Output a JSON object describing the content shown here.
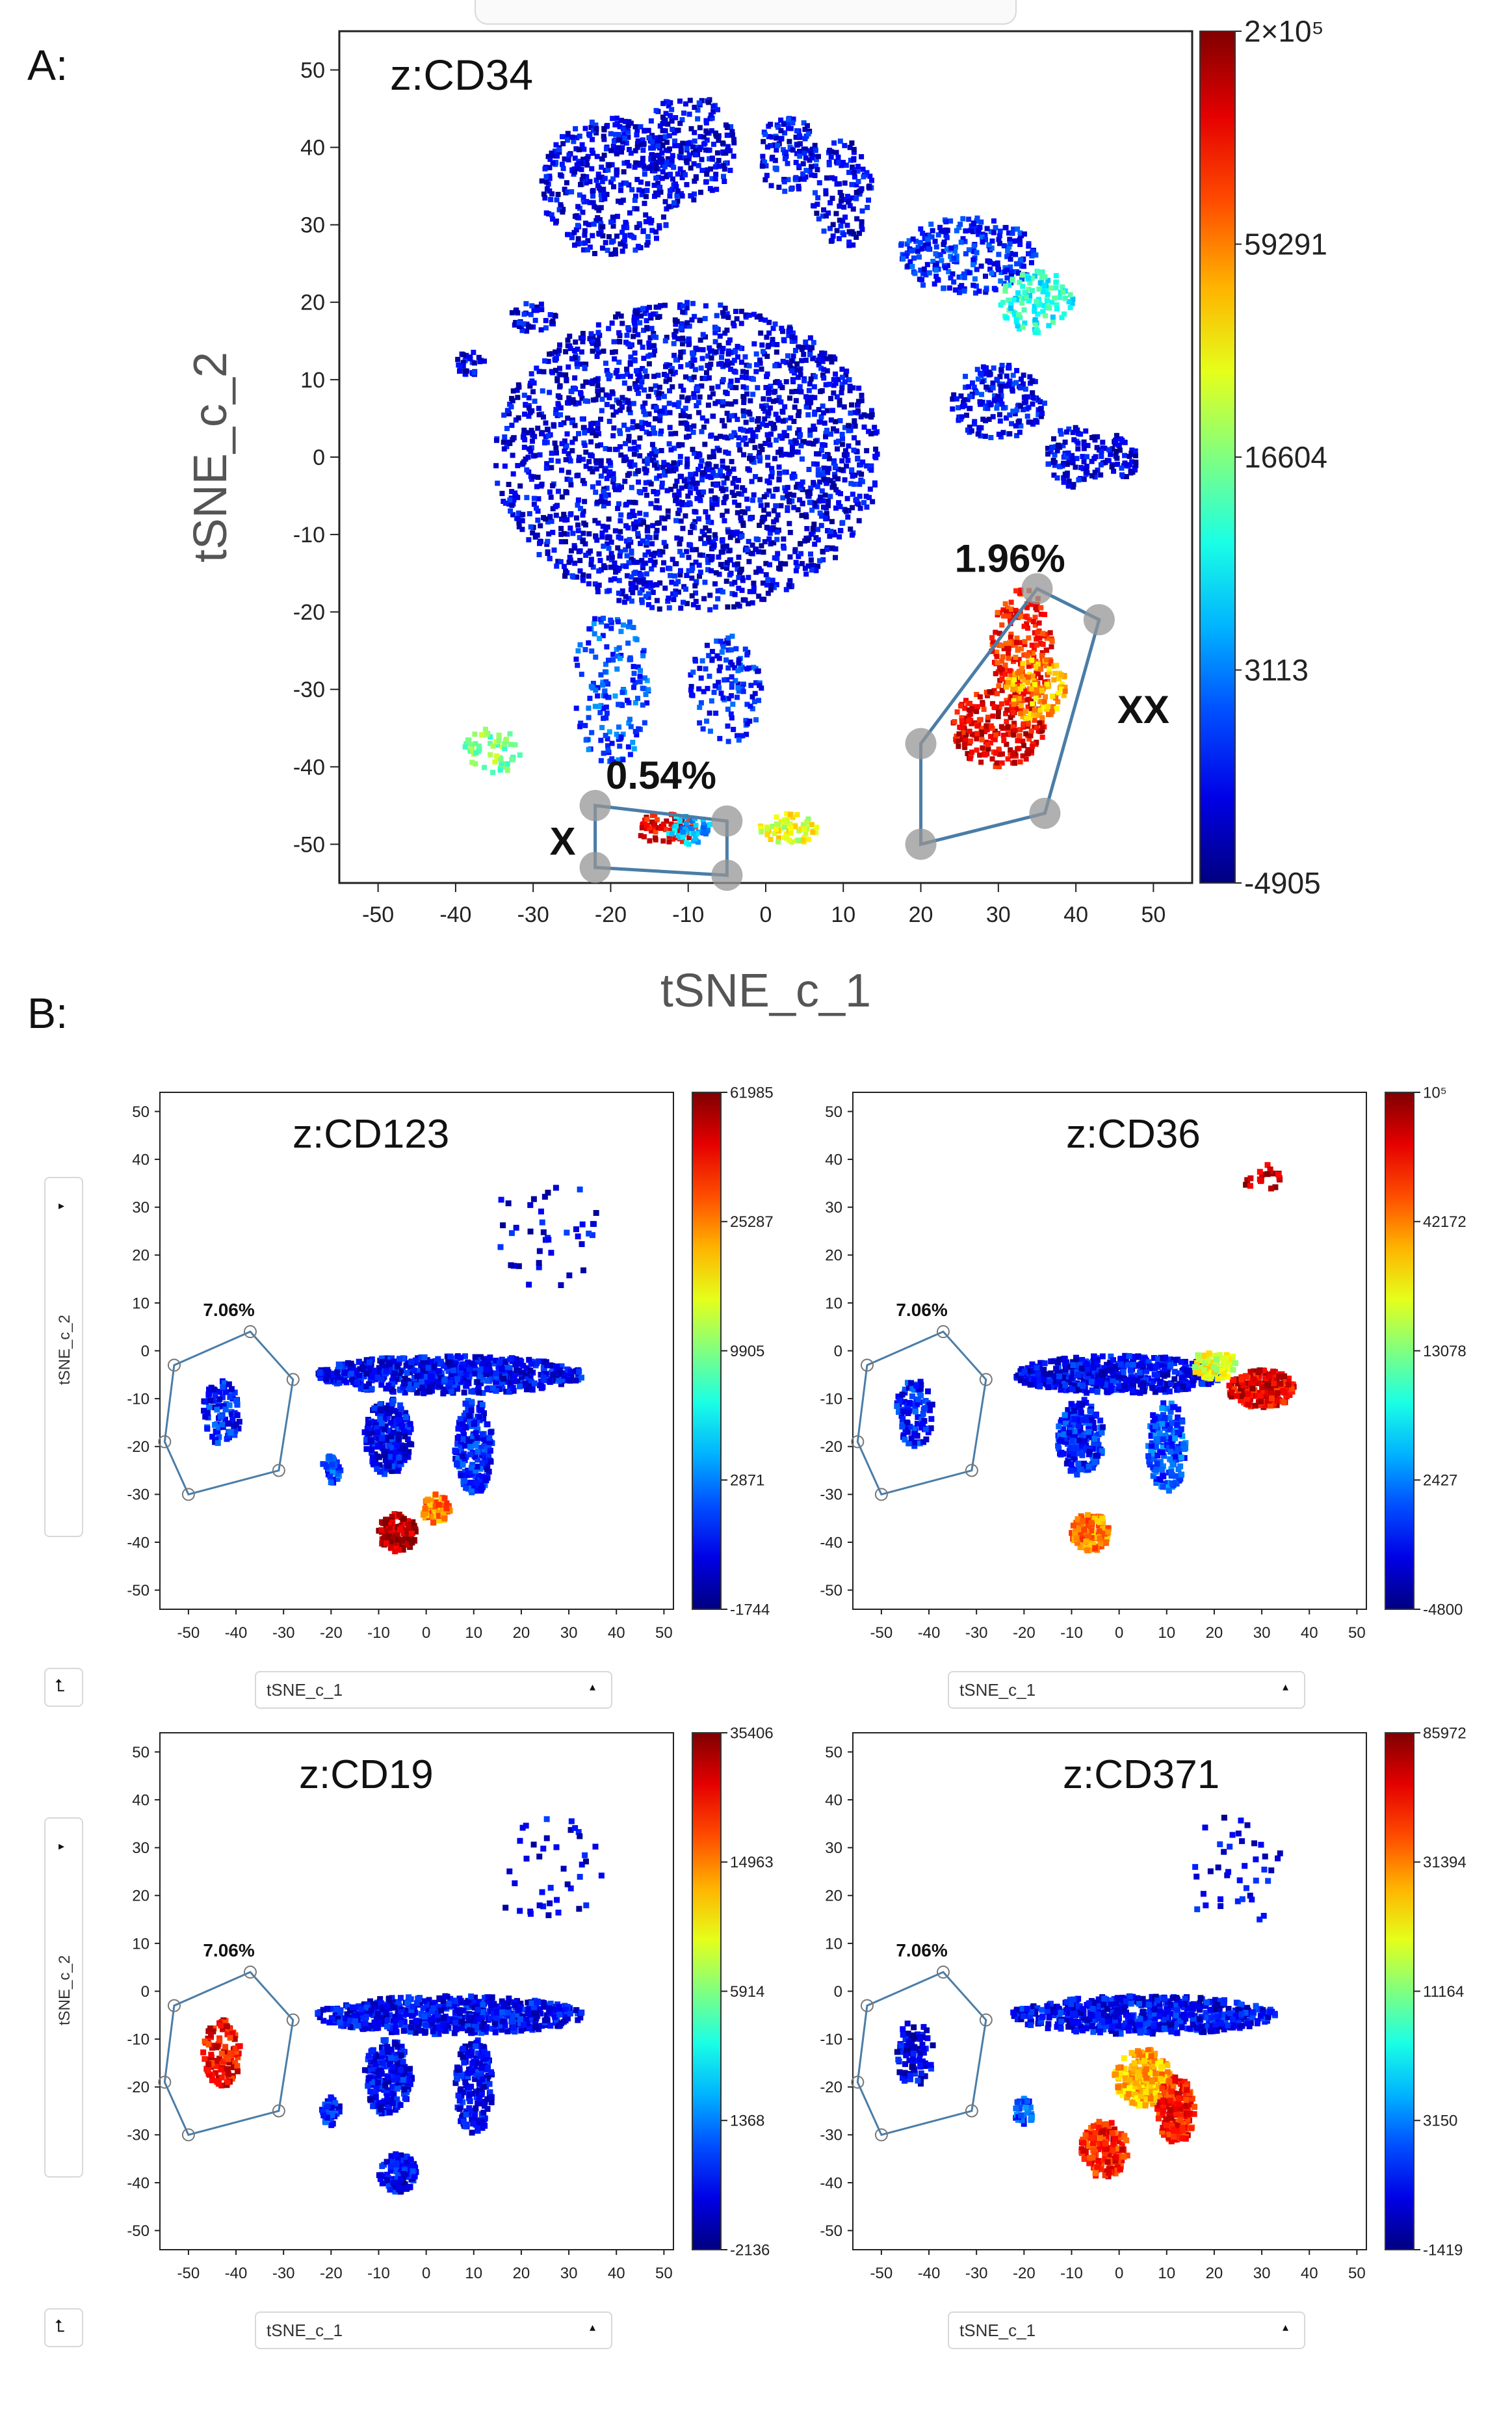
{
  "panels": {
    "a_label": "A:",
    "b_label": "B:"
  },
  "chart_data": [
    {
      "type": "scatter",
      "id": "A",
      "title": "z:CD34",
      "xlabel": "tSNE_c_1",
      "ylabel": "tSNE_c_2",
      "xlim": [
        -55,
        55
      ],
      "ylim": [
        -55,
        55
      ],
      "xticks": [
        "-50",
        "-40",
        "-30",
        "-20",
        "-10",
        "0",
        "10",
        "20",
        "30",
        "40",
        "50"
      ],
      "yticks": [
        "50",
        "40",
        "30",
        "20",
        "10",
        "0",
        "-10",
        "-20",
        "-30",
        "-40",
        "-50"
      ],
      "colorbar_labels": [
        "2×10⁵",
        "59291",
        "16604",
        "3113",
        "-4905"
      ],
      "gates": [
        {
          "label": "X",
          "percent": "0.54%",
          "vertices": [
            [
              -22,
              -45
            ],
            [
              -5,
              -47
            ],
            [
              -5,
              -54
            ],
            [
              -22,
              -53
            ]
          ]
        },
        {
          "label": "XX",
          "percent": "1.96%",
          "vertices": [
            [
              20,
              -37
            ],
            [
              35,
              -17
            ],
            [
              43,
              -21
            ],
            [
              36,
              -46
            ],
            [
              20,
              -50
            ]
          ]
        }
      ],
      "clusters": [
        {
          "cx": -10,
          "cy": 0,
          "rx": 25,
          "ry": 20,
          "n": 2200,
          "value": 0.1
        },
        {
          "cx": -20,
          "cy": 35,
          "rx": 9,
          "ry": 9,
          "n": 400,
          "value": 0.1
        },
        {
          "cx": -10,
          "cy": 40,
          "rx": 6,
          "ry": 7,
          "n": 220,
          "value": 0.1
        },
        {
          "cx": 3,
          "cy": 39,
          "rx": 4,
          "ry": 5,
          "n": 120,
          "value": 0.12
        },
        {
          "cx": 10,
          "cy": 34,
          "rx": 4,
          "ry": 7,
          "n": 120,
          "value": 0.1
        },
        {
          "cx": 26,
          "cy": 26,
          "rx": 9,
          "ry": 5,
          "n": 260,
          "value": 0.15
        },
        {
          "cx": 35,
          "cy": 20,
          "rx": 5,
          "ry": 4,
          "n": 120,
          "value": 0.4
        },
        {
          "cx": 30,
          "cy": 7,
          "rx": 6,
          "ry": 5,
          "n": 180,
          "value": 0.12
        },
        {
          "cx": 40,
          "cy": 0,
          "rx": 4,
          "ry": 4,
          "n": 100,
          "value": 0.1
        },
        {
          "cx": 46,
          "cy": 0,
          "rx": 2,
          "ry": 3,
          "n": 50,
          "value": 0.1
        },
        {
          "cx": 33,
          "cy": -25,
          "rx": 4,
          "ry": 8,
          "n": 220,
          "value": 0.85
        },
        {
          "cx": 30,
          "cy": -35,
          "rx": 6,
          "ry": 5,
          "n": 240,
          "value": 0.9
        },
        {
          "cx": 35,
          "cy": -30,
          "rx": 4,
          "ry": 4,
          "n": 110,
          "value": 0.7
        },
        {
          "cx": -13,
          "cy": -48,
          "rx": 4,
          "ry": 2,
          "n": 70,
          "value": 0.88
        },
        {
          "cx": -10,
          "cy": -48,
          "rx": 3,
          "ry": 2,
          "n": 50,
          "value": 0.3
        },
        {
          "cx": 3,
          "cy": -48,
          "rx": 4,
          "ry": 2,
          "n": 70,
          "value": 0.6
        },
        {
          "cx": -20,
          "cy": -30,
          "rx": 5,
          "ry": 10,
          "n": 160,
          "value": 0.2
        },
        {
          "cx": -5,
          "cy": -30,
          "rx": 5,
          "ry": 7,
          "n": 120,
          "value": 0.15
        },
        {
          "cx": -35,
          "cy": -38,
          "rx": 4,
          "ry": 3,
          "n": 60,
          "value": 0.5
        },
        {
          "cx": -38,
          "cy": 12,
          "rx": 2,
          "ry": 2,
          "n": 30,
          "value": 0.1
        },
        {
          "cx": -30,
          "cy": 18,
          "rx": 3,
          "ry": 2,
          "n": 40,
          "value": 0.1
        }
      ]
    },
    {
      "type": "scatter",
      "id": "B1",
      "title": "z:CD123",
      "xlabel": "tSNE_c_1",
      "ylabel": "tSNE_c_2",
      "xlim": [
        -56,
        52
      ],
      "ylim": [
        -54,
        54
      ],
      "xticks": [
        "-50",
        "-40",
        "-30",
        "-20",
        "-10",
        "0",
        "10",
        "20",
        "30",
        "40",
        "50"
      ],
      "yticks": [
        "50",
        "40",
        "30",
        "20",
        "10",
        "0",
        "-10",
        "-20",
        "-30",
        "-40",
        "-50"
      ],
      "colorbar_labels": [
        "61985",
        "25287",
        "9905",
        "2871",
        "-1744"
      ],
      "gates": [
        {
          "percent": "7.06%",
          "vertices": [
            [
              -37,
              4
            ],
            [
              -28,
              -6
            ],
            [
              -31,
              -25
            ],
            [
              -50,
              -30
            ],
            [
              -55,
              -19
            ],
            [
              -53,
              -3
            ]
          ]
        }
      ],
      "clusters": [
        {
          "cx": -43,
          "cy": -13,
          "rx": 4,
          "ry": 7,
          "n": 90,
          "value": 0.15
        },
        {
          "cx": 5,
          "cy": -5,
          "rx": 28,
          "ry": 4,
          "n": 650,
          "value": 0.12
        },
        {
          "cx": -8,
          "cy": -18,
          "rx": 5,
          "ry": 8,
          "n": 220,
          "value": 0.12
        },
        {
          "cx": 10,
          "cy": -20,
          "rx": 4,
          "ry": 10,
          "n": 200,
          "value": 0.15
        },
        {
          "cx": -6,
          "cy": -38,
          "rx": 4,
          "ry": 4,
          "n": 120,
          "value": 0.95
        },
        {
          "cx": 2,
          "cy": -33,
          "rx": 3,
          "ry": 3,
          "n": 60,
          "value": 0.75
        },
        {
          "cx": -20,
          "cy": -25,
          "rx": 2,
          "ry": 3,
          "n": 40,
          "value": 0.2
        },
        {
          "cx": 25,
          "cy": 25,
          "rx": 12,
          "ry": 12,
          "n": 40,
          "value": 0.1
        }
      ]
    },
    {
      "type": "scatter",
      "id": "B2",
      "title": "z:CD36",
      "xlabel": "tSNE_c_1",
      "ylabel": "tSNE_c_2",
      "xlim": [
        -56,
        52
      ],
      "ylim": [
        -54,
        54
      ],
      "xticks": [
        "-50",
        "-40",
        "-30",
        "-20",
        "-10",
        "0",
        "10",
        "20",
        "30",
        "40",
        "50"
      ],
      "yticks": [
        "50",
        "40",
        "30",
        "20",
        "10",
        "0",
        "-10",
        "-20",
        "-30",
        "-40",
        "-50"
      ],
      "colorbar_labels": [
        "10⁵",
        "42172",
        "13078",
        "2427",
        "-4800"
      ],
      "gates": [
        {
          "percent": "7.06%",
          "vertices": [
            [
              -37,
              4
            ],
            [
              -28,
              -6
            ],
            [
              -31,
              -25
            ],
            [
              -50,
              -30
            ],
            [
              -55,
              -19
            ],
            [
              -53,
              -3
            ]
          ]
        }
      ],
      "clusters": [
        {
          "cx": -43,
          "cy": -13,
          "rx": 4,
          "ry": 7,
          "n": 90,
          "value": 0.15
        },
        {
          "cx": 0,
          "cy": -5,
          "rx": 22,
          "ry": 4,
          "n": 520,
          "value": 0.12
        },
        {
          "cx": 30,
          "cy": -8,
          "rx": 7,
          "ry": 4,
          "n": 200,
          "value": 0.9
        },
        {
          "cx": 20,
          "cy": -3,
          "rx": 5,
          "ry": 3,
          "n": 80,
          "value": 0.6
        },
        {
          "cx": -8,
          "cy": -18,
          "rx": 5,
          "ry": 8,
          "n": 200,
          "value": 0.15
        },
        {
          "cx": 10,
          "cy": -20,
          "rx": 4,
          "ry": 10,
          "n": 180,
          "value": 0.2
        },
        {
          "cx": -6,
          "cy": -38,
          "rx": 4,
          "ry": 4,
          "n": 120,
          "value": 0.75
        },
        {
          "cx": 30,
          "cy": 36,
          "rx": 4,
          "ry": 3,
          "n": 20,
          "value": 0.95
        }
      ]
    },
    {
      "type": "scatter",
      "id": "B3",
      "title": "z:CD19",
      "xlabel": "tSNE_c_1",
      "ylabel": "tSNE_c_2",
      "xlim": [
        -56,
        52
      ],
      "ylim": [
        -54,
        54
      ],
      "xticks": [
        "-50",
        "-40",
        "-30",
        "-20",
        "-10",
        "0",
        "10",
        "20",
        "30",
        "40",
        "50"
      ],
      "yticks": [
        "50",
        "40",
        "30",
        "20",
        "10",
        "0",
        "-10",
        "-20",
        "-30",
        "-40",
        "-50"
      ],
      "colorbar_labels": [
        "35406",
        "14963",
        "5914",
        "1368",
        "-2136"
      ],
      "gates": [
        {
          "percent": "7.06%",
          "vertices": [
            [
              -37,
              4
            ],
            [
              -28,
              -6
            ],
            [
              -31,
              -25
            ],
            [
              -50,
              -30
            ],
            [
              -55,
              -19
            ],
            [
              -53,
              -3
            ]
          ]
        }
      ],
      "clusters": [
        {
          "cx": -43,
          "cy": -13,
          "rx": 4,
          "ry": 7,
          "n": 110,
          "value": 0.88
        },
        {
          "cx": 5,
          "cy": -5,
          "rx": 28,
          "ry": 4,
          "n": 650,
          "value": 0.12
        },
        {
          "cx": -8,
          "cy": -18,
          "rx": 5,
          "ry": 8,
          "n": 220,
          "value": 0.12
        },
        {
          "cx": 10,
          "cy": -20,
          "rx": 4,
          "ry": 10,
          "n": 200,
          "value": 0.12
        },
        {
          "cx": -6,
          "cy": -38,
          "rx": 4,
          "ry": 4,
          "n": 120,
          "value": 0.12
        },
        {
          "cx": -20,
          "cy": -25,
          "rx": 2,
          "ry": 3,
          "n": 40,
          "value": 0.15
        },
        {
          "cx": 25,
          "cy": 25,
          "rx": 12,
          "ry": 12,
          "n": 40,
          "value": 0.1
        }
      ]
    },
    {
      "type": "scatter",
      "id": "B4",
      "title": "z:CD371",
      "xlabel": "tSNE_c_1",
      "ylabel": "tSNE_c_2",
      "xlim": [
        -56,
        52
      ],
      "ylim": [
        -54,
        54
      ],
      "xticks": [
        "-50",
        "-40",
        "-30",
        "-20",
        "-10",
        "0",
        "10",
        "20",
        "30",
        "40",
        "50"
      ],
      "yticks": [
        "50",
        "40",
        "30",
        "20",
        "10",
        "0",
        "-10",
        "-20",
        "-30",
        "-40",
        "-50"
      ],
      "colorbar_labels": [
        "85972",
        "31394",
        "11164",
        "3150",
        "-1419"
      ],
      "gates": [
        {
          "percent": "7.06%",
          "vertices": [
            [
              -37,
              4
            ],
            [
              -28,
              -6
            ],
            [
              -31,
              -25
            ],
            [
              -50,
              -30
            ],
            [
              -55,
              -19
            ],
            [
              -53,
              -3
            ]
          ]
        }
      ],
      "clusters": [
        {
          "cx": -43,
          "cy": -13,
          "rx": 4,
          "ry": 7,
          "n": 90,
          "value": 0.1
        },
        {
          "cx": 5,
          "cy": -5,
          "rx": 28,
          "ry": 4,
          "n": 650,
          "value": 0.12
        },
        {
          "cx": 5,
          "cy": -18,
          "rx": 6,
          "ry": 6,
          "n": 220,
          "value": 0.7
        },
        {
          "cx": 12,
          "cy": -25,
          "rx": 4,
          "ry": 7,
          "n": 180,
          "value": 0.85
        },
        {
          "cx": -3,
          "cy": -33,
          "rx": 5,
          "ry": 6,
          "n": 180,
          "value": 0.85
        },
        {
          "cx": -20,
          "cy": -25,
          "rx": 2,
          "ry": 3,
          "n": 40,
          "value": 0.2
        },
        {
          "cx": 25,
          "cy": 25,
          "rx": 12,
          "ry": 12,
          "n": 40,
          "value": 0.1
        }
      ]
    }
  ],
  "controls": {
    "dropdown_label": "tSNE_c_1",
    "axis_label": "tSNE_c_2"
  }
}
